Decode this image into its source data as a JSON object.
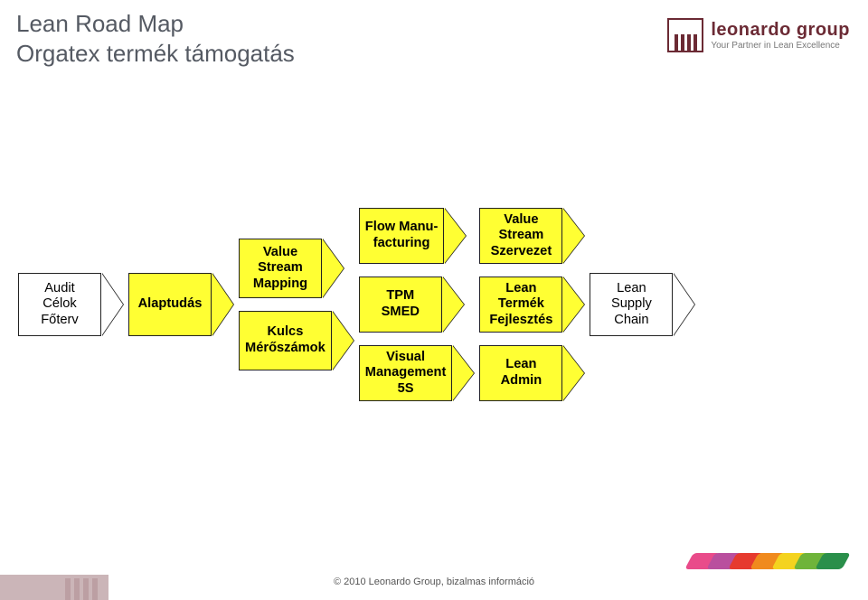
{
  "title": {
    "line1": "Lean Road Map",
    "line2": "Orgatex termék támogatás"
  },
  "logo": {
    "brand": "leonardo group",
    "tagline": "Your Partner in Lean Excellence"
  },
  "diagram": {
    "type": "flowchart",
    "node_fill_yellow": "#ffff33",
    "node_fill_white": "#ffffff",
    "node_border": "#222222",
    "text_color": "#000000",
    "font_size_pt": 11,
    "columns": [
      {
        "id": "col1",
        "fill": "white",
        "items": [
          {
            "name": "audit-celok-foterv",
            "label": "Audit\nCélok\nFőterv"
          }
        ]
      },
      {
        "id": "col2",
        "fill": "yellow",
        "items": [
          {
            "name": "alaptudas",
            "label": "Alaptudás"
          }
        ]
      },
      {
        "id": "col3",
        "fill": "yellow",
        "items": [
          {
            "name": "vsm",
            "label": "Value\nStream\nMapping"
          },
          {
            "name": "kulcs-meroszamok",
            "label": "Kulcs\nMérőszámok"
          }
        ]
      },
      {
        "id": "col4",
        "fill": "yellow",
        "items": [
          {
            "name": "flow-manufacturing",
            "label": "Flow Manu-\nfacturing"
          },
          {
            "name": "tpm-smed",
            "label": "TPM\nSMED"
          },
          {
            "name": "visual-mgmt-5s",
            "label": "Visual\nManagement\n5S"
          }
        ]
      },
      {
        "id": "col5",
        "fill": "yellow",
        "items": [
          {
            "name": "vs-szervezet",
            "label": "Value\nStream\nSzervezet"
          },
          {
            "name": "lean-termek-fejlesztes",
            "label": "Lean\nTermék\nFejlesztés"
          },
          {
            "name": "lean-admin",
            "label": "Lean\nAdmin"
          }
        ]
      },
      {
        "id": "col6",
        "fill": "white",
        "items": [
          {
            "name": "lean-supply-chain",
            "label": "Lean\nSupply\nChain"
          }
        ]
      }
    ]
  },
  "footer": {
    "copyright": "© 2010 Leonardo Group, bizalmas információ"
  },
  "brush_colors": [
    "#e94b8a",
    "#b94f9e",
    "#e63a2e",
    "#f08a1d",
    "#f4d31f",
    "#6fb43a",
    "#2a8f4a"
  ]
}
